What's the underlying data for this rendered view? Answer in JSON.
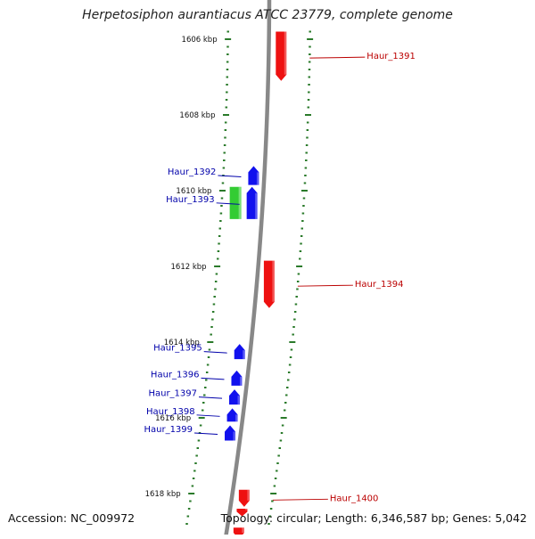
{
  "title": "Herpetosiphon aurantiacus ATCC 23779, complete genome",
  "footer": {
    "accession": "Accession: NC_009972",
    "summary": "Topology: circular; Length: 6,346,587 bp; Genes: 5,042"
  },
  "colors": {
    "backbone": "#888888",
    "tick": "#2a7a2a",
    "forward_gene": "#1111ee",
    "reverse_gene": "#ee1111",
    "rna_gene": "#33cc33",
    "forward_label": "#0000aa",
    "reverse_label": "#bb0000"
  },
  "ticks": [
    {
      "label": "1606 kbp",
      "kbp": 1606
    },
    {
      "label": "1608 kbp",
      "kbp": 1608
    },
    {
      "label": "1610 kbp",
      "kbp": 1610
    },
    {
      "label": "1612 kbp",
      "kbp": 1612
    },
    {
      "label": "1614 kbp",
      "kbp": 1614
    },
    {
      "label": "1616 kbp",
      "kbp": 1616
    },
    {
      "label": "1618 kbp",
      "kbp": 1618
    }
  ],
  "genes": [
    {
      "name": "Haur_1391",
      "strand": "reverse",
      "start_kbp": 1605.8,
      "end_kbp": 1607.1
    },
    {
      "name": "Haur_1392",
      "strand": "forward",
      "start_kbp": 1609.35,
      "end_kbp": 1609.85
    },
    {
      "name": "Haur_1393",
      "strand": "forward",
      "start_kbp": 1609.9,
      "end_kbp": 1610.75
    },
    {
      "name": "",
      "strand": "rna",
      "start_kbp": 1609.9,
      "end_kbp": 1610.75
    },
    {
      "name": "Haur_1394",
      "strand": "reverse",
      "start_kbp": 1611.85,
      "end_kbp": 1613.1
    },
    {
      "name": "Haur_1395",
      "strand": "forward",
      "start_kbp": 1614.05,
      "end_kbp": 1614.45
    },
    {
      "name": "Haur_1396",
      "strand": "forward",
      "start_kbp": 1614.75,
      "end_kbp": 1615.15
    },
    {
      "name": "Haur_1397",
      "strand": "forward",
      "start_kbp": 1615.25,
      "end_kbp": 1615.65
    },
    {
      "name": "Haur_1398",
      "strand": "forward",
      "start_kbp": 1615.75,
      "end_kbp": 1616.1
    },
    {
      "name": "Haur_1399",
      "strand": "forward",
      "start_kbp": 1616.2,
      "end_kbp": 1616.6
    },
    {
      "name": "Haur_1400",
      "strand": "reverse",
      "start_kbp": 1617.9,
      "end_kbp": 1618.35
    },
    {
      "name": "",
      "strand": "reverse",
      "start_kbp": 1618.4,
      "end_kbp": 1618.6
    },
    {
      "name": "",
      "strand": "reverse",
      "start_kbp": 1618.9,
      "end_kbp": 1619.2
    }
  ]
}
